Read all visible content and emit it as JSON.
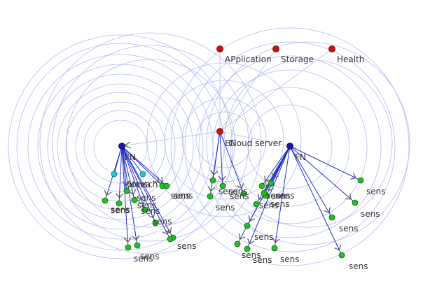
{
  "colors": {
    "app": "#cc1111",
    "cloud": "#cc1111",
    "fn": "#1a1aa0",
    "sensor": "#22c022",
    "actuator": "#22c8d8",
    "edge": "#1f2fd0",
    "ring": "#aab4f0"
  },
  "services": [
    {
      "id": "app",
      "label": "APplication"
    },
    {
      "id": "storage",
      "label": "Storage"
    },
    {
      "id": "health",
      "label": "Health"
    }
  ],
  "cloud": {
    "label": "Cloud server",
    "overlap_label": "EN"
  },
  "fog_nodes": [
    {
      "id": "fn-left",
      "label": "FN"
    },
    {
      "id": "fn-right",
      "label": "FN"
    }
  ],
  "tags": [
    {
      "id": "iot-dev",
      "label": "iotvtch"
    },
    {
      "id": "iot-dev-2",
      "label": "iotvea"
    }
  ],
  "sensor_label": "sens"
}
